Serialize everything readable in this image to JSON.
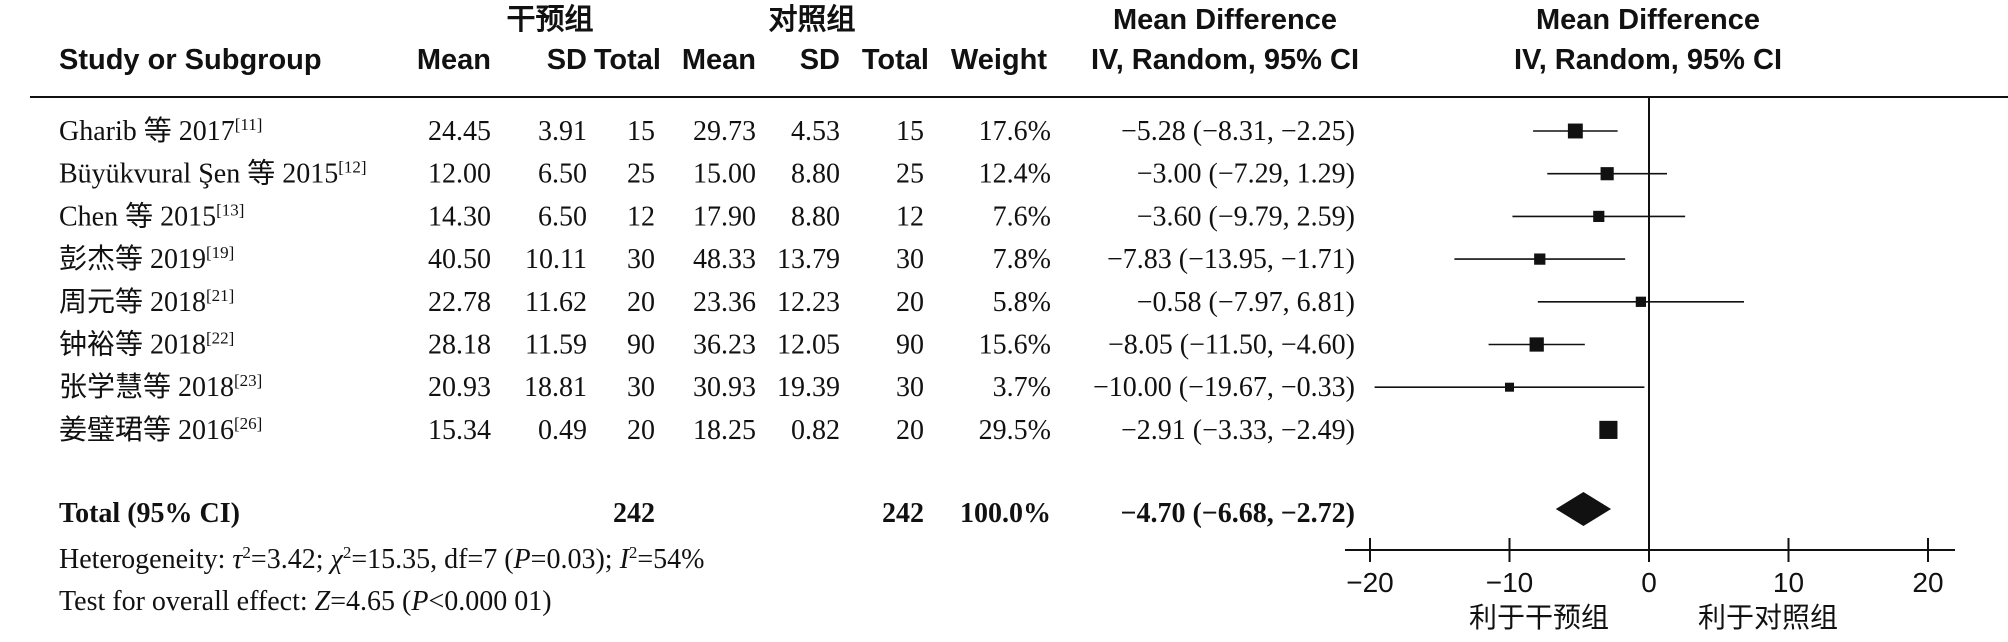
{
  "chart_data": {
    "type": "forest",
    "group_labels": {
      "experimental": "干预组",
      "control": "对照组"
    },
    "columns": {
      "study": "Study or Subgroup",
      "mean": "Mean",
      "sd": "SD",
      "total": "Total",
      "weight": "Weight",
      "effect_title": "Mean Difference",
      "effect_sub": "IV, Random, 95% CI",
      "plot_title": "Mean Difference",
      "plot_sub": "IV, Random, 95% CI"
    },
    "studies": [
      {
        "name": "Gharib 等 2017",
        "ref": "[11]",
        "exp_mean": "24.45",
        "exp_sd": "3.91",
        "exp_total": "15",
        "ctl_mean": "29.73",
        "ctl_sd": "4.53",
        "ctl_total": "15",
        "weight": "17.6%",
        "ci_text": "−5.28 (−8.31, −2.25)",
        "md": -5.28,
        "lo": -8.31,
        "hi": -2.25,
        "w": 17.6
      },
      {
        "name": "Büyükvural Şen 等 2015",
        "ref": "[12]",
        "exp_mean": "12.00",
        "exp_sd": "6.50",
        "exp_total": "25",
        "ctl_mean": "15.00",
        "ctl_sd": "8.80",
        "ctl_total": "25",
        "weight": "12.4%",
        "ci_text": "−3.00 (−7.29, 1.29)",
        "md": -3.0,
        "lo": -7.29,
        "hi": 1.29,
        "w": 12.4
      },
      {
        "name": "Chen 等 2015",
        "ref": "[13]",
        "exp_mean": "14.30",
        "exp_sd": "6.50",
        "exp_total": "12",
        "ctl_mean": "17.90",
        "ctl_sd": "8.80",
        "ctl_total": "12",
        "weight": "7.6%",
        "ci_text": "−3.60 (−9.79, 2.59)",
        "md": -3.6,
        "lo": -9.79,
        "hi": 2.59,
        "w": 7.6
      },
      {
        "name": "彭杰等 2019",
        "ref": "[19]",
        "exp_mean": "40.50",
        "exp_sd": "10.11",
        "exp_total": "30",
        "ctl_mean": "48.33",
        "ctl_sd": "13.79",
        "ctl_total": "30",
        "weight": "7.8%",
        "ci_text": "−7.83 (−13.95, −1.71)",
        "md": -7.83,
        "lo": -13.95,
        "hi": -1.71,
        "w": 7.8
      },
      {
        "name": "周元等 2018",
        "ref": "[21]",
        "exp_mean": "22.78",
        "exp_sd": "11.62",
        "exp_total": "20",
        "ctl_mean": "23.36",
        "ctl_sd": "12.23",
        "ctl_total": "20",
        "weight": "5.8%",
        "ci_text": "−0.58 (−7.97, 6.81)",
        "md": -0.58,
        "lo": -7.97,
        "hi": 6.81,
        "w": 5.8
      },
      {
        "name": "钟裕等 2018",
        "ref": "[22]",
        "exp_mean": "28.18",
        "exp_sd": "11.59",
        "exp_total": "90",
        "ctl_mean": "36.23",
        "ctl_sd": "12.05",
        "ctl_total": "90",
        "weight": "15.6%",
        "ci_text": "−8.05 (−11.50, −4.60)",
        "md": -8.05,
        "lo": -11.5,
        "hi": -4.6,
        "w": 15.6
      },
      {
        "name": "张学慧等 2018",
        "ref": "[23]",
        "exp_mean": "20.93",
        "exp_sd": "18.81",
        "exp_total": "30",
        "ctl_mean": "30.93",
        "ctl_sd": "19.39",
        "ctl_total": "30",
        "weight": "3.7%",
        "ci_text": "−10.00 (−19.67, −0.33)",
        "md": -10.0,
        "lo": -19.67,
        "hi": -0.33,
        "w": 3.7
      },
      {
        "name": "姜璧珺等 2016",
        "ref": "[26]",
        "exp_mean": "15.34",
        "exp_sd": "0.49",
        "exp_total": "20",
        "ctl_mean": "18.25",
        "ctl_sd": "0.82",
        "ctl_total": "20",
        "weight": "29.5%",
        "ci_text": "−2.91 (−3.33, −2.49)",
        "md": -2.91,
        "lo": -3.33,
        "hi": -2.49,
        "w": 29.5
      }
    ],
    "total": {
      "label": "Total (95% CI)",
      "exp_total": "242",
      "ctl_total": "242",
      "weight": "100.0%",
      "ci_text": "−4.70 (−6.68, −2.72)",
      "md": -4.7,
      "lo": -6.68,
      "hi": -2.72
    },
    "heterogeneity": {
      "label": "Heterogeneity: ",
      "tau": "τ",
      "tau_eq": "=3.42; ",
      "chi": "χ",
      "chi_eq": "=15.35, df=7 (",
      "p": "P",
      "p_eq": "=0.03); ",
      "i": "I",
      "i_eq": "=54%",
      "sup2": "2"
    },
    "overall": {
      "label": "Test for overall effect: ",
      "z": "Z",
      "z_eq": "=4.65 (",
      "p": "P",
      "p_eq": "<0.000 01)"
    },
    "x_axis": {
      "ticks": [
        -20,
        -10,
        0,
        10,
        20
      ],
      "tick_labels": [
        "−20",
        "−10",
        "0",
        "10",
        "20"
      ],
      "xlim": [
        -20,
        20
      ]
    },
    "favours": {
      "left": "利于干预组",
      "right": "利于对照组"
    }
  }
}
